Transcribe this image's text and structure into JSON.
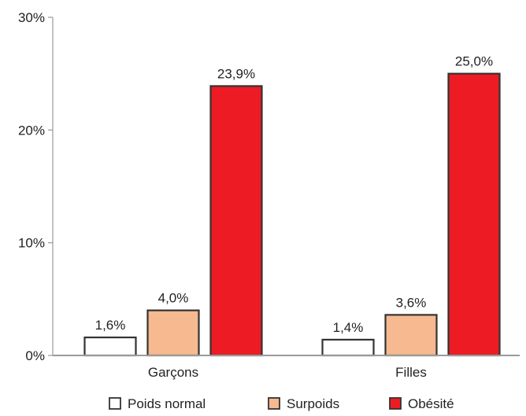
{
  "chart_data": {
    "type": "bar",
    "categories": [
      "Garçons",
      "Filles"
    ],
    "series": [
      {
        "name": "Poids normal",
        "values": [
          1.6,
          1.4
        ],
        "labels": [
          "1,6%",
          "1,4%"
        ],
        "color": "#ffffff"
      },
      {
        "name": "Surpoids",
        "values": [
          4.0,
          3.6
        ],
        "labels": [
          "4,0%",
          "3,6%"
        ],
        "color": "#f7b98f"
      },
      {
        "name": "Obésité",
        "values": [
          23.9,
          25.0
        ],
        "labels": [
          "23,9%",
          "25,0%"
        ],
        "color": "#ed1c24"
      }
    ],
    "ylim": [
      0,
      30
    ],
    "yticks": [
      0,
      10,
      20,
      30
    ],
    "ytick_labels": [
      "0%",
      "10%",
      "20%",
      "30%"
    ],
    "grid": false,
    "legend_position": "bottom",
    "title": "",
    "xlabel": "",
    "ylabel": ""
  }
}
